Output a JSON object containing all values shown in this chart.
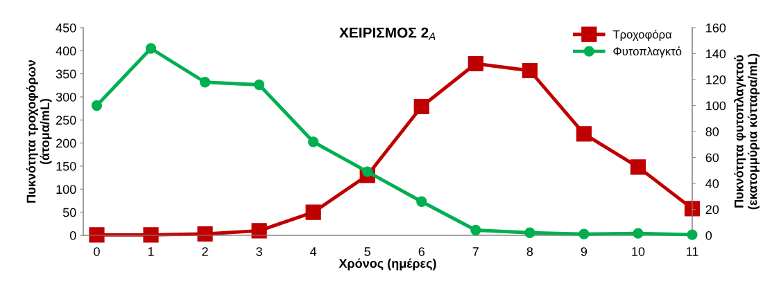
{
  "chart_data": {
    "type": "line",
    "title": "ΧΕΙΡΙΣΜΟΣ 2$_{A}$",
    "xlabel": "Χρόνος (ημέρες)",
    "ylabel": "Πυκνότητα τροχοφόρων\n(άτομα/mL)",
    "y2label": "Πυκνότητα φυτοπλαγκτού\n(εκατομμύρια κύτταρα/mL)",
    "categories": [
      "0",
      "1",
      "2",
      "3",
      "4",
      "5",
      "6",
      "7",
      "8",
      "9",
      "10",
      "11"
    ],
    "series": [
      {
        "name": "Τροχοφόρα",
        "color": "#c00000",
        "marker": "square",
        "values": [
          1,
          1,
          3,
          10,
          50,
          130,
          279,
          372,
          357,
          220,
          148,
          58
        ]
      },
      {
        "name": "Φυτοπλαγκτό",
        "color": "#00b050",
        "marker": "circle",
        "axis": "y2",
        "values": [
          100,
          144,
          118,
          116,
          72,
          49,
          26,
          4,
          2,
          1,
          1.5,
          0.5
        ]
      }
    ],
    "ylim": [
      0,
      450
    ],
    "yticks": [
      0,
      50,
      100,
      150,
      200,
      250,
      300,
      350,
      400,
      450
    ],
    "y2lim": [
      0,
      160
    ],
    "y2ticks": [
      0,
      20,
      40,
      60,
      80,
      100,
      120,
      140,
      160
    ],
    "grid": false,
    "legend": "top right",
    "line_style": "solid"
  }
}
